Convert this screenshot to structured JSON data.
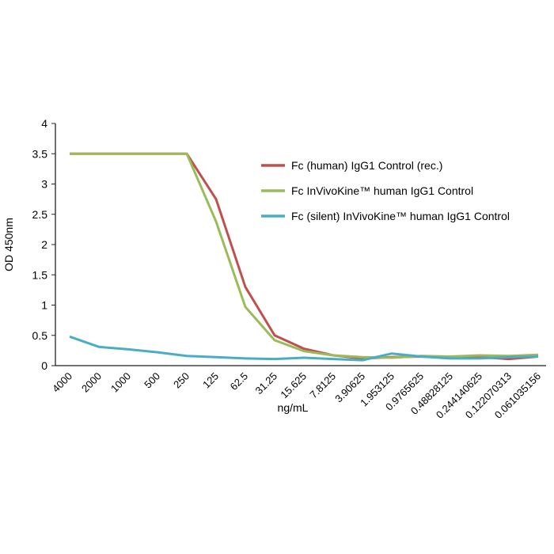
{
  "chart_data": {
    "type": "line",
    "title": "",
    "xlabel": "ng/mL",
    "ylabel": "OD 450nm",
    "ylim": [
      0,
      4
    ],
    "yticks": [
      "0",
      "0.5",
      "1",
      "1.5",
      "2",
      "2.5",
      "3",
      "3.5",
      "4"
    ],
    "categories": [
      "4000",
      "2000",
      "1000",
      "500",
      "250",
      "125",
      "62.5",
      "31.25",
      "15.625",
      "7.8125",
      "3.90625",
      "1.953125",
      "0.9765625",
      "0.48828125",
      "0.244140625",
      "0.122070313",
      "0.061035156"
    ],
    "grid": false,
    "legend": "top-right",
    "series": [
      {
        "name": "Fc (human) IgG1 Control (rec.)",
        "color": "#c0504d",
        "values": [
          3.5,
          3.5,
          3.5,
          3.5,
          3.5,
          2.75,
          1.3,
          0.5,
          0.28,
          0.17,
          0.12,
          0.14,
          0.15,
          0.13,
          0.14,
          0.11,
          0.15
        ]
      },
      {
        "name": "Fc InVivoKine™ human IgG1 Control",
        "color": "#9bbb59",
        "values": [
          3.5,
          3.5,
          3.5,
          3.5,
          3.5,
          2.38,
          0.97,
          0.42,
          0.24,
          0.17,
          0.14,
          0.13,
          0.16,
          0.15,
          0.17,
          0.16,
          0.18
        ]
      },
      {
        "name": "Fc (silent) InVivoKine™ human IgG1 Control",
        "color": "#4bacc6",
        "values": [
          0.48,
          0.31,
          0.27,
          0.22,
          0.16,
          0.14,
          0.12,
          0.11,
          0.13,
          0.11,
          0.09,
          0.2,
          0.15,
          0.12,
          0.12,
          0.14,
          0.15
        ]
      }
    ]
  }
}
